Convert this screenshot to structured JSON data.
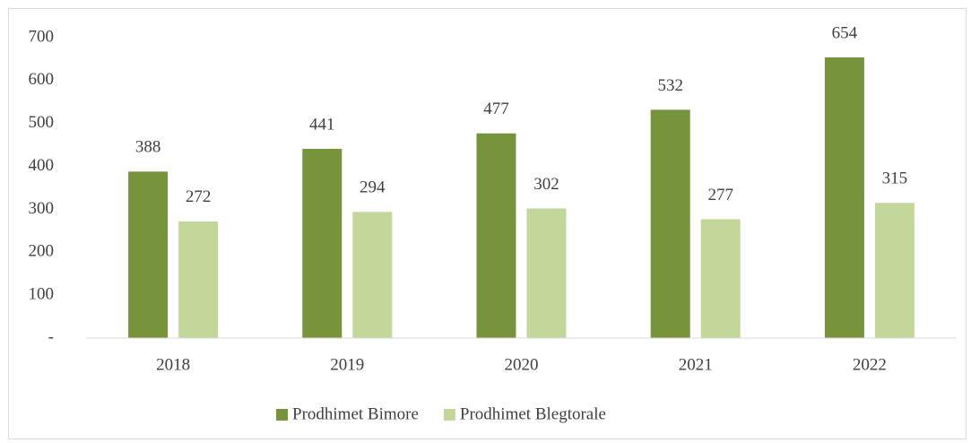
{
  "chart_data": {
    "type": "bar",
    "categories": [
      "2018",
      "2019",
      "2020",
      "2021",
      "2022"
    ],
    "series": [
      {
        "name": "Prodhimet Bimore",
        "color": "#77933c",
        "values": [
          388,
          441,
          477,
          532,
          654
        ]
      },
      {
        "name": "Prodhimet Blegtorale",
        "color": "#c4d79b",
        "values": [
          272,
          294,
          302,
          277,
          315
        ]
      }
    ],
    "ylim": [
      0,
      700
    ],
    "yticks": [
      {
        "value": 0,
        "label": "-"
      },
      100,
      200,
      300,
      400,
      500,
      600,
      700
    ],
    "grid": false,
    "legend": "bottom"
  }
}
